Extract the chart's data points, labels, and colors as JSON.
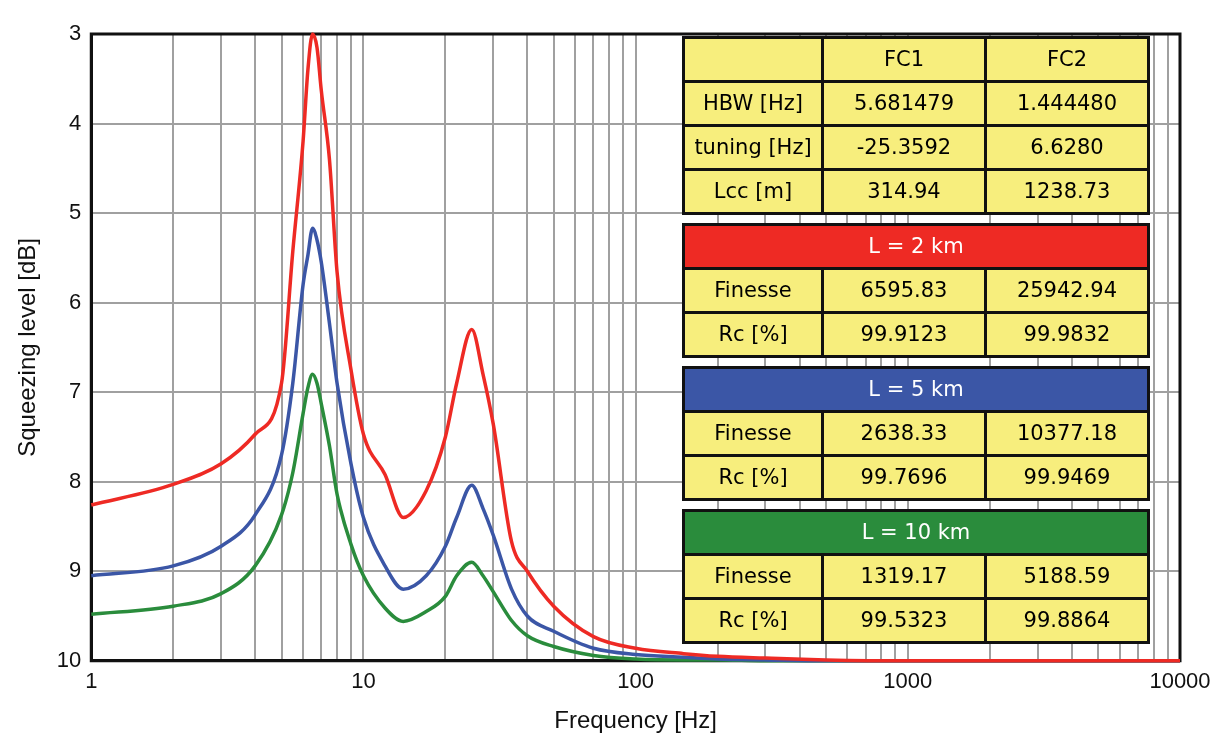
{
  "chart_data": {
    "type": "line",
    "xlabel": "Frequency [Hz]",
    "ylabel": "Squeezing level [dB]",
    "x": [
      1,
      2,
      3,
      4,
      5,
      5.5,
      6,
      6.25,
      6.5,
      6.75,
      7,
      7.5,
      8,
      9,
      10,
      12,
      14,
      17,
      20,
      22,
      25,
      27.5,
      30,
      35,
      40,
      50,
      70,
      100,
      150,
      200,
      300,
      500,
      1000,
      10000
    ],
    "series": [
      {
        "name": "L = 2 km",
        "color": "#ee2a24",
        "values": [
          8.26,
          8.03,
          7.8,
          7.47,
          6.9,
          5.43,
          4.2,
          3.4,
          3.0,
          3.15,
          3.63,
          4.4,
          5.66,
          6.75,
          7.47,
          7.92,
          8.4,
          8.1,
          7.5,
          6.9,
          6.3,
          6.8,
          7.36,
          8.67,
          9.0,
          9.39,
          9.73,
          9.86,
          9.92,
          9.95,
          9.97,
          9.99,
          10,
          10
        ]
      },
      {
        "name": "L = 5 km",
        "color": "#3b56a6",
        "values": [
          9.05,
          8.94,
          8.72,
          8.37,
          7.7,
          6.9,
          5.8,
          5.47,
          5.17,
          5.3,
          5.55,
          6.23,
          6.9,
          7.8,
          8.4,
          8.94,
          9.2,
          9.05,
          8.72,
          8.4,
          8.04,
          8.3,
          8.6,
          9.2,
          9.5,
          9.67,
          9.86,
          9.93,
          9.96,
          9.98,
          9.99,
          10,
          10,
          10
        ]
      },
      {
        "name": "L = 10 km",
        "color": "#2a8c3c",
        "values": [
          9.48,
          9.39,
          9.25,
          8.94,
          8.37,
          7.9,
          7.24,
          6.95,
          6.8,
          6.9,
          7.13,
          7.6,
          8.14,
          8.7,
          9.05,
          9.41,
          9.56,
          9.45,
          9.28,
          9.05,
          8.9,
          9.05,
          9.23,
          9.55,
          9.72,
          9.84,
          9.94,
          9.98,
          9.99,
          9.99,
          10,
          10,
          10,
          10
        ]
      }
    ],
    "log": "x",
    "xlim": [
      1,
      10000
    ],
    "xticks": [
      1,
      {
        "value": 2,
        "label": null
      },
      {
        "value": 3,
        "label": null
      },
      {
        "value": 4,
        "label": null
      },
      {
        "value": 5,
        "label": null
      },
      {
        "value": 6,
        "label": null
      },
      {
        "value": 7,
        "label": null
      },
      {
        "value": 8,
        "label": null
      },
      {
        "value": 9,
        "label": null
      },
      10,
      {
        "value": 20,
        "label": null
      },
      {
        "value": 30,
        "label": null
      },
      {
        "value": 40,
        "label": null
      },
      {
        "value": 50,
        "label": null
      },
      {
        "value": 60,
        "label": null
      },
      {
        "value": 70,
        "label": null
      },
      {
        "value": 80,
        "label": null
      },
      {
        "value": 90,
        "label": null
      },
      100,
      {
        "value": 200,
        "label": null
      },
      {
        "value": 300,
        "label": null
      },
      {
        "value": 400,
        "label": null
      },
      {
        "value": 500,
        "label": null
      },
      {
        "value": 600,
        "label": null
      },
      {
        "value": 700,
        "label": null
      },
      {
        "value": 800,
        "label": null
      },
      {
        "value": 900,
        "label": null
      },
      1000,
      {
        "value": 2000,
        "label": null
      },
      {
        "value": 3000,
        "label": null
      },
      {
        "value": 4000,
        "label": null
      },
      {
        "value": 5000,
        "label": null
      },
      {
        "value": 6000,
        "label": null
      },
      {
        "value": 7000,
        "label": null
      },
      {
        "value": 8000,
        "label": null
      },
      {
        "value": 9000,
        "label": null
      },
      10000
    ],
    "ylim": [
      10,
      3
    ],
    "yticks": [
      3,
      4,
      5,
      6,
      7,
      8,
      9,
      10
    ],
    "grid": true,
    "marker": "none",
    "line_style": "solid",
    "annotations": [
      "FC1",
      "FC2",
      "HBW [Hz]",
      "5.681479",
      "1.444480",
      "tuning [Hz]",
      "-25.3592",
      "6.6280",
      "Lcc [m]",
      "314.94",
      "1238.73",
      "Finesse",
      "6595.83",
      "25942.94",
      "Rc [%]",
      "99.9123",
      "99.9832",
      "Finesse",
      "2638.33",
      "10377.18",
      "Rc [%]",
      "99.7696",
      "99.9469",
      "Finesse",
      "1319.17",
      "5188.59",
      "Rc [%]",
      "99.5323",
      "99.8864"
    ]
  }
}
